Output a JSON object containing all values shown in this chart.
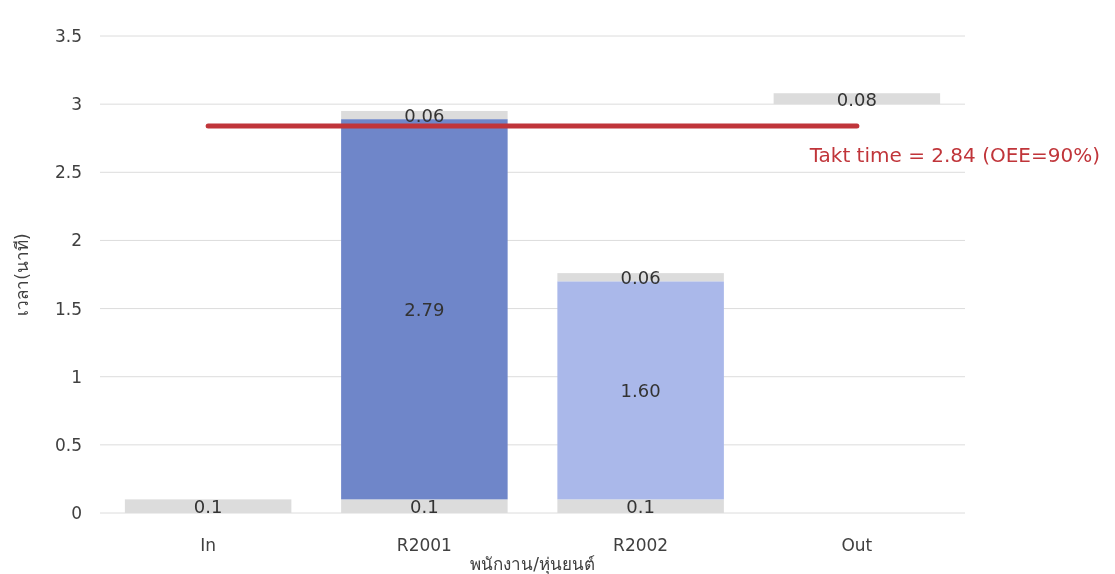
{
  "chart_data": {
    "type": "bar",
    "xlabel": "พนักงาน/หุ่นยนต์",
    "ylabel": "เวลา(นาที)",
    "categories": [
      "In",
      "R2001",
      "R2002",
      "Out"
    ],
    "series": [
      {
        "base": [
          0,
          0,
          0,
          3.0
        ],
        "colors": [
          "#dcdcdc",
          "#dcdcdc",
          "#dcdcdc",
          "#dcdcdc"
        ],
        "values": [
          0.1,
          0.1,
          0.1,
          0.08
        ],
        "value_labels": [
          "0.1",
          "0.1",
          "0.1",
          "0.08"
        ]
      },
      {
        "base": [
          null,
          0.1,
          0.1,
          null
        ],
        "colors": [
          null,
          "#6f86c9",
          "#aab8ea",
          null
        ],
        "values": [
          null,
          2.79,
          1.6,
          null
        ],
        "value_labels": [
          null,
          "2.79",
          "1.60",
          null
        ]
      },
      {
        "base": [
          null,
          2.89,
          1.7,
          null
        ],
        "colors": [
          null,
          "#dcdcdc",
          "#dcdcdc",
          null
        ],
        "values": [
          null,
          0.06,
          0.06,
          null
        ],
        "value_labels": [
          null,
          "0.06",
          "0.06",
          null
        ]
      }
    ],
    "ylim": [
      0,
      3.5
    ],
    "yticks": [
      0,
      0.5,
      1,
      1.5,
      2,
      2.5,
      3,
      3.5
    ],
    "grid": "y",
    "ref_lines": [
      {
        "axis": "y",
        "value": 2.84,
        "label": "Takt time = 2.84 (OEE=90%)",
        "color": "#c0353a"
      }
    ]
  }
}
